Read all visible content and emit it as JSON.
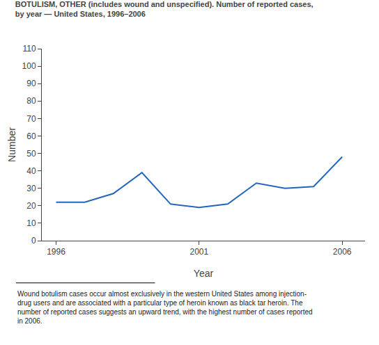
{
  "chart_data": {
    "type": "line",
    "title": "BOTULISM, OTHER (includes wound and unspecified). Number of reported cases,\nby year — United States, 1996–2006",
    "x": [
      1996,
      1997,
      1998,
      1999,
      2000,
      2001,
      2002,
      2003,
      2004,
      2005,
      2006
    ],
    "values": [
      22,
      22,
      27,
      39,
      21,
      19,
      21,
      33,
      30,
      31,
      48
    ],
    "color": "#2266bb",
    "xlabel": "Year",
    "ylabel": "Number",
    "xlim": [
      1995.5,
      2006.8
    ],
    "xticks": [
      1996,
      2001,
      2006
    ],
    "ylim": [
      0,
      110
    ],
    "yticks": [
      0,
      10,
      20,
      30,
      40,
      50,
      60,
      70,
      80,
      90,
      100,
      110
    ],
    "grid": false,
    "annotations": [
      "Wound botulism cases occur almost exclusively in the western United States among injection-\ndrug users and are associated with a particular type of heroin known as black tar heroin. The\nnumber of reported cases suggests an upward trend, with the highest number of cases reported\nin 2006."
    ]
  }
}
